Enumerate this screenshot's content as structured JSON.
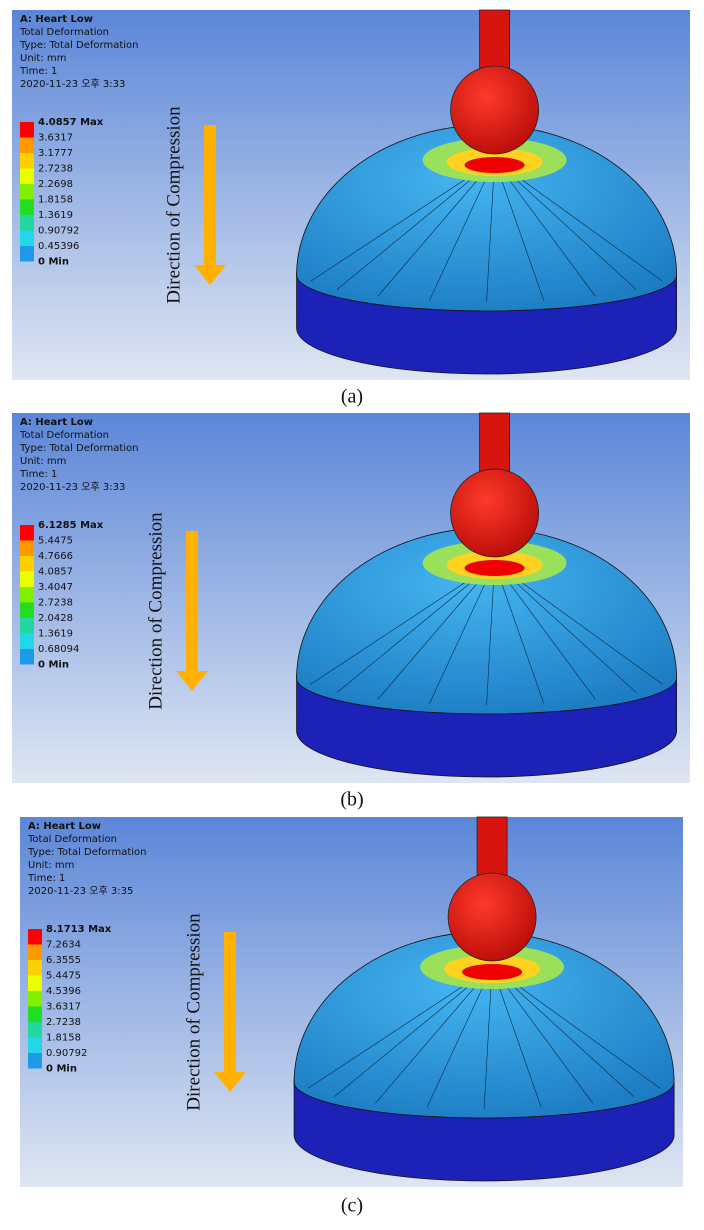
{
  "panels": [
    {
      "title": "A: Heart Low",
      "info": [
        "Total Deformation",
        "Type: Total Deformation",
        "Unit: mm",
        "Time: 1",
        "2020-11-23 오후 3:33"
      ],
      "legend": [
        "4.0857 Max",
        "3.6317",
        "3.1777",
        "2.7238",
        "2.2698",
        "1.8158",
        "1.3619",
        "0.90792",
        "0.45396",
        "0 Min"
      ],
      "direction": "Direction of Compression",
      "caption": "(a)"
    },
    {
      "title": "A: Heart Low",
      "info": [
        "Total Deformation",
        "Type: Total Deformation",
        "Unit: mm",
        "Time: 1",
        "2020-11-23 오후 3:33"
      ],
      "legend": [
        "6.1285 Max",
        "5.4475",
        "4.7666",
        "4.0857",
        "3.4047",
        "2.7238",
        "2.0428",
        "1.3619",
        "0.68094",
        "0 Min"
      ],
      "direction": "Direction of Compression",
      "caption": "(b)"
    },
    {
      "title": "A: Heart Low",
      "info": [
        "Total Deformation",
        "Type: Total Deformation",
        "Unit: mm",
        "Time: 1",
        "2020-11-23 오후 3:35"
      ],
      "legend": [
        "8.1713 Max",
        "7.2634",
        "6.3555",
        "5.4475",
        "4.5396",
        "3.6317",
        "2.7238",
        "1.8158",
        "0.90792",
        "0 Min"
      ],
      "direction": "Direction of Compression",
      "caption": "(c)"
    }
  ]
}
